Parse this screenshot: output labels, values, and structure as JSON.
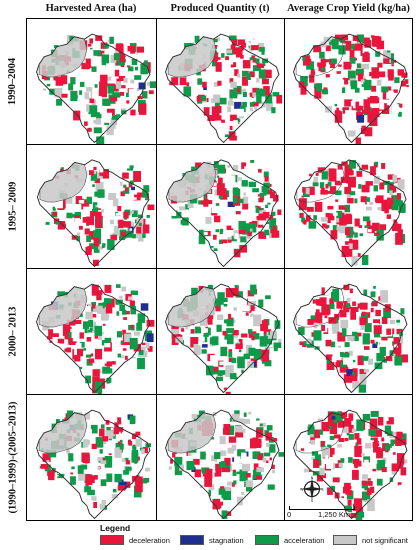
{
  "columns": [
    {
      "id": "harvested",
      "title": "Harvested Area (ha)"
    },
    {
      "id": "produced",
      "title": "Produced Quantity (t)"
    },
    {
      "id": "yield",
      "title": "Average Crop Yield (kg/ha)"
    }
  ],
  "rows": [
    {
      "id": "r1",
      "label": "1990–2004"
    },
    {
      "id": "r2",
      "label": "1995– 2009"
    },
    {
      "id": "r3",
      "label": "2000– 2013"
    },
    {
      "id": "r4",
      "label": "(1990–1999)-(2005–2013)"
    }
  ],
  "legend": {
    "title": "Legend",
    "items": [
      {
        "key": "deceleration",
        "label": "deceleration",
        "color": "#e8163c"
      },
      {
        "key": "stagnation",
        "label": "stagnation",
        "color": "#1f2f8f"
      },
      {
        "key": "acceleration",
        "label": "acceleration",
        "color": "#0f9a4a"
      },
      {
        "key": "not_significant",
        "label": "not significant",
        "color": "#c8c8c8"
      }
    ]
  },
  "scale": {
    "zero": "0",
    "end": "1,250 Km"
  },
  "compass": {
    "n": "N",
    "s": "S",
    "e": "E",
    "w": "W"
  },
  "colors": {
    "deceleration": "#e8163c",
    "stagnation": "#1f2f8f",
    "acceleration": "#0f9a4a",
    "not_significant": "#c8c8c8",
    "outline": "#333333"
  }
}
